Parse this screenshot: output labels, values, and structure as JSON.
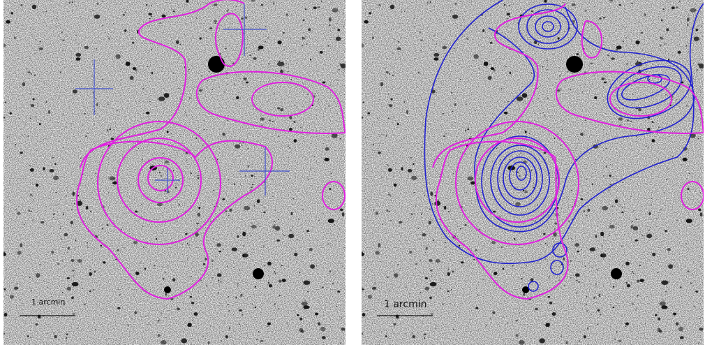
{
  "panels": [
    {
      "scale_label": "1 arcmin"
    },
    {
      "scale_label": "1 arcmin"
    }
  ]
}
